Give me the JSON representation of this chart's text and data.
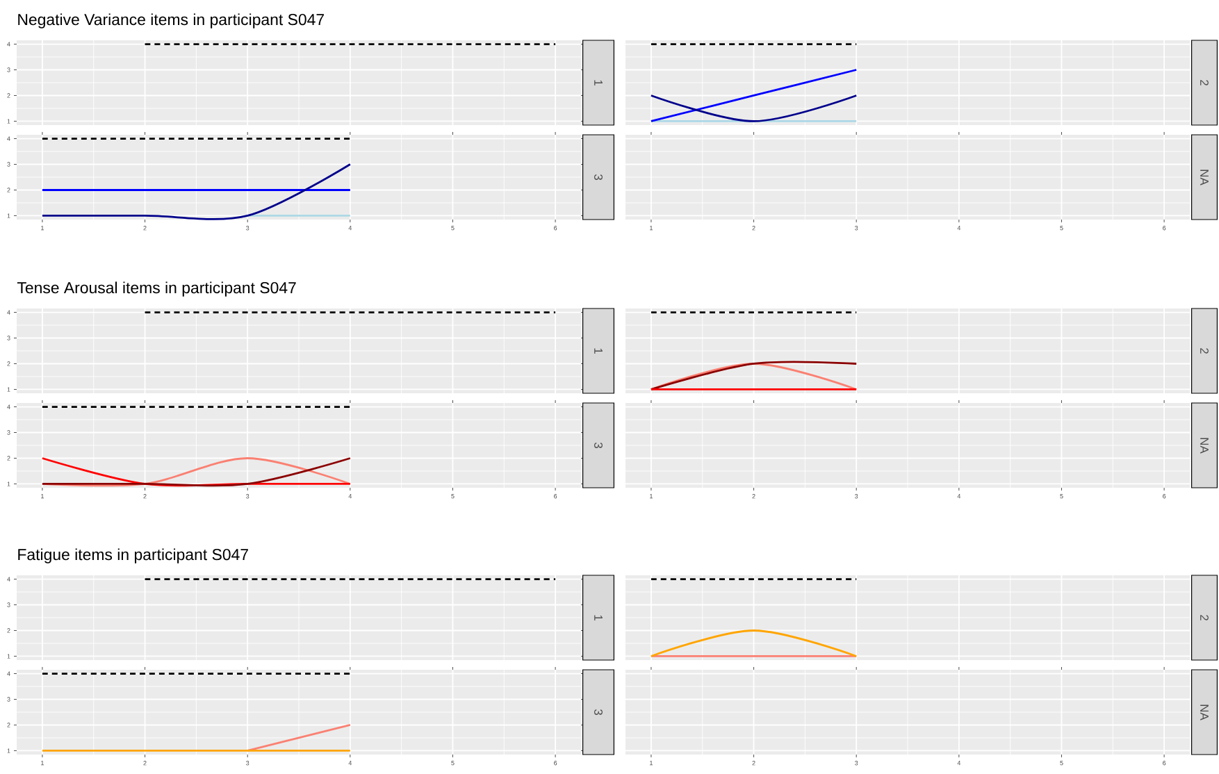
{
  "chart_data": [
    {
      "type": "line",
      "title": "Negative Variance items in participant S047",
      "annotations": [
        "1"
      ],
      "xlim": [
        0.75,
        6.25
      ],
      "ylim": [
        0.85,
        4.15
      ],
      "xticks": [
        1,
        2,
        3,
        4,
        5,
        6
      ],
      "yticks": [
        1,
        2,
        3,
        4
      ],
      "grid": true,
      "tick_labels": "y",
      "series": [
        {
          "x": [
            2,
            3,
            4,
            5,
            6
          ],
          "values": [
            4,
            4,
            4,
            4,
            4
          ],
          "color": "#000000",
          "line_style": "dashed"
        }
      ]
    },
    {
      "type": "line",
      "annotations": [
        "2"
      ],
      "xlim": [
        0.75,
        6.25
      ],
      "ylim": [
        0.85,
        4.15
      ],
      "xticks": [
        1,
        2,
        3,
        4,
        5,
        6
      ],
      "yticks": [
        1,
        2,
        3,
        4
      ],
      "grid": true,
      "tick_labels": false,
      "series": [
        {
          "x": [
            1,
            2,
            3
          ],
          "values": [
            4,
            4,
            4
          ],
          "color": "#000000",
          "line_style": "dashed"
        },
        {
          "x": [
            1,
            2,
            3
          ],
          "values": [
            1,
            1,
            1
          ],
          "color": "#add8e6"
        },
        {
          "x": [
            1,
            2,
            3
          ],
          "values": [
            1,
            2,
            3
          ],
          "color": "#0000ff"
        },
        {
          "x": [
            1,
            2,
            3
          ],
          "values": [
            2,
            1,
            2
          ],
          "color": "#00008b"
        }
      ]
    },
    {
      "type": "line",
      "annotations": [
        "3"
      ],
      "xlim": [
        0.75,
        6.25
      ],
      "ylim": [
        0.85,
        4.15
      ],
      "xticks": [
        1,
        2,
        3,
        4,
        5,
        6
      ],
      "yticks": [
        1,
        2,
        3,
        4
      ],
      "grid": true,
      "series": [
        {
          "x": [
            1,
            2,
            3,
            4
          ],
          "values": [
            4,
            4,
            4,
            4
          ],
          "color": "#000000",
          "line_style": "dashed"
        },
        {
          "x": [
            3,
            4
          ],
          "values": [
            1,
            1
          ],
          "color": "#add8e6"
        },
        {
          "x": [
            1,
            2,
            3,
            4
          ],
          "values": [
            2,
            2,
            2,
            2
          ],
          "color": "#0000ff"
        },
        {
          "x": [
            1,
            2,
            3,
            4
          ],
          "values": [
            1,
            1,
            1,
            3
          ],
          "color": "#00008b"
        }
      ]
    },
    {
      "type": "line",
      "annotations": [
        "NA"
      ],
      "xlim": [
        0.75,
        6.25
      ],
      "ylim": [
        0.85,
        4.15
      ],
      "xticks": [
        1,
        2,
        3,
        4,
        5,
        6
      ],
      "yticks": [
        1,
        2,
        3,
        4
      ],
      "grid": true,
      "tick_labels": "x"
    },
    {
      "type": "line",
      "title": "Tense Arousal items in participant S047",
      "annotations": [
        "1"
      ],
      "xlim": [
        0.75,
        6.25
      ],
      "ylim": [
        0.85,
        4.15
      ],
      "xticks": [
        1,
        2,
        3,
        4,
        5,
        6
      ],
      "yticks": [
        1,
        2,
        3,
        4
      ],
      "grid": true,
      "tick_labels": "y",
      "series": [
        {
          "x": [
            2,
            3,
            4,
            5,
            6
          ],
          "values": [
            4,
            4,
            4,
            4,
            4
          ],
          "color": "#000000",
          "line_style": "dashed"
        }
      ]
    },
    {
      "type": "line",
      "annotations": [
        "2"
      ],
      "xlim": [
        0.75,
        6.25
      ],
      "ylim": [
        0.85,
        4.15
      ],
      "xticks": [
        1,
        2,
        3,
        4,
        5,
        6
      ],
      "yticks": [
        1,
        2,
        3,
        4
      ],
      "grid": true,
      "tick_labels": false,
      "series": [
        {
          "x": [
            1,
            2,
            3
          ],
          "values": [
            4,
            4,
            4
          ],
          "color": "#000000",
          "line_style": "dashed"
        },
        {
          "x": [
            1,
            2,
            3
          ],
          "values": [
            1,
            2,
            1
          ],
          "color": "#fa8072"
        },
        {
          "x": [
            1,
            2,
            3
          ],
          "values": [
            1,
            2,
            2
          ],
          "color": "#8b0000"
        },
        {
          "x": [
            1,
            2,
            3
          ],
          "values": [
            1,
            1,
            1
          ],
          "color": "#ff0000"
        }
      ]
    },
    {
      "type": "line",
      "annotations": [
        "3"
      ],
      "xlim": [
        0.75,
        6.25
      ],
      "ylim": [
        0.85,
        4.15
      ],
      "xticks": [
        1,
        2,
        3,
        4,
        5,
        6
      ],
      "yticks": [
        1,
        2,
        3,
        4
      ],
      "grid": true,
      "series": [
        {
          "x": [
            1,
            2,
            3,
            4
          ],
          "values": [
            4,
            4,
            4,
            4
          ],
          "color": "#000000",
          "line_style": "dashed"
        },
        {
          "x": [
            1,
            2,
            3,
            4
          ],
          "values": [
            1,
            1,
            2,
            1
          ],
          "color": "#fa8072"
        },
        {
          "x": [
            1,
            2,
            3,
            4
          ],
          "values": [
            2,
            1,
            1,
            1
          ],
          "color": "#ff0000"
        },
        {
          "x": [
            1,
            2,
            3,
            4
          ],
          "values": [
            1,
            1,
            1,
            2
          ],
          "color": "#8b0000"
        }
      ]
    },
    {
      "type": "line",
      "annotations": [
        "NA"
      ],
      "xlim": [
        0.75,
        6.25
      ],
      "ylim": [
        0.85,
        4.15
      ],
      "xticks": [
        1,
        2,
        3,
        4,
        5,
        6
      ],
      "yticks": [
        1,
        2,
        3,
        4
      ],
      "grid": true,
      "tick_labels": "x"
    },
    {
      "type": "line",
      "title": "Fatigue items in participant S047",
      "annotations": [
        "1"
      ],
      "xlim": [
        0.75,
        6.25
      ],
      "ylim": [
        0.85,
        4.15
      ],
      "xticks": [
        1,
        2,
        3,
        4,
        5,
        6
      ],
      "yticks": [
        1,
        2,
        3,
        4
      ],
      "grid": true,
      "tick_labels": "y",
      "series": [
        {
          "x": [
            2,
            3,
            4,
            5,
            6
          ],
          "values": [
            4,
            4,
            4,
            4,
            4
          ],
          "color": "#000000",
          "line_style": "dashed"
        }
      ]
    },
    {
      "type": "line",
      "annotations": [
        "2"
      ],
      "xlim": [
        0.75,
        6.25
      ],
      "ylim": [
        0.85,
        4.15
      ],
      "xticks": [
        1,
        2,
        3,
        4,
        5,
        6
      ],
      "yticks": [
        1,
        2,
        3,
        4
      ],
      "grid": true,
      "tick_labels": false,
      "series": [
        {
          "x": [
            1,
            2,
            3
          ],
          "values": [
            4,
            4,
            4
          ],
          "color": "#000000",
          "line_style": "dashed"
        },
        {
          "x": [
            1,
            2,
            3
          ],
          "values": [
            1,
            1,
            1
          ],
          "color": "#fa8072"
        },
        {
          "x": [
            1,
            2,
            3
          ],
          "values": [
            1,
            2,
            1
          ],
          "color": "#ffa500"
        }
      ]
    },
    {
      "type": "line",
      "annotations": [
        "3"
      ],
      "xlim": [
        0.75,
        6.25
      ],
      "ylim": [
        0.85,
        4.15
      ],
      "xticks": [
        1,
        2,
        3,
        4,
        5,
        6
      ],
      "yticks": [
        1,
        2,
        3,
        4
      ],
      "grid": true,
      "series": [
        {
          "x": [
            1,
            2,
            3,
            4
          ],
          "values": [
            4,
            4,
            4,
            4
          ],
          "color": "#000000",
          "line_style": "dashed"
        },
        {
          "x": [
            3,
            4
          ],
          "values": [
            1,
            2
          ],
          "color": "#fa8072"
        },
        {
          "x": [
            1,
            2,
            3,
            4
          ],
          "values": [
            1,
            1,
            1,
            1
          ],
          "color": "#ffa500"
        }
      ]
    },
    {
      "type": "line",
      "annotations": [
        "NA"
      ],
      "xlim": [
        0.75,
        6.25
      ],
      "ylim": [
        0.85,
        4.15
      ],
      "xticks": [
        1,
        2,
        3,
        4,
        5,
        6
      ],
      "yticks": [
        1,
        2,
        3,
        4
      ],
      "grid": true,
      "tick_labels": "x"
    }
  ]
}
